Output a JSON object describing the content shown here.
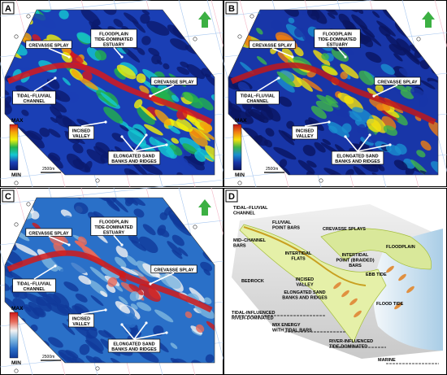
{
  "panels": [
    {
      "letter": "A",
      "colormap": [
        "#d7191c",
        "#f5a30a",
        "#f2f20a",
        "#22b24c",
        "#14c8d2",
        "#1a3fb5",
        "#0b1a6e"
      ],
      "color_max": "MAX",
      "color_min": "MIN",
      "scale_bar": "2500m",
      "labels": [
        {
          "lines": [
            "CREVASSE SPLAY"
          ]
        },
        {
          "lines": [
            "FLOODPLAIN",
            "TIDE-DOMINATED",
            "ESTUARY"
          ]
        },
        {
          "lines": [
            "CREVASSE SPLAY"
          ]
        },
        {
          "lines": [
            "TIDAL–FLUVIAL",
            "CHANNEL"
          ]
        },
        {
          "lines": [
            "INCISED",
            "VALLEY"
          ]
        },
        {
          "lines": [
            "ELONGATED SAND",
            "BANKS AND RIDGES"
          ]
        }
      ]
    },
    {
      "letter": "B",
      "colormap": [
        "#c0171b",
        "#f07e12",
        "#f5e20c",
        "#3fb54a",
        "#1a8fd0",
        "#1836a8",
        "#0a1560"
      ],
      "color_max": "MAX",
      "color_min": "MIN",
      "scale_bar": "2500m",
      "labels": [
        {
          "lines": [
            "CREVASSE SPLAY"
          ]
        },
        {
          "lines": [
            "FLOODPLAIN",
            "TIDE-DOMINATED",
            "ESTUARY"
          ]
        },
        {
          "lines": [
            "CREVASSE SPLAY"
          ]
        },
        {
          "lines": [
            "TIDAL–FLUVIAL",
            "CHANNEL"
          ]
        },
        {
          "lines": [
            "INCISED",
            "VALLEY"
          ]
        },
        {
          "lines": [
            "ELONGATED SAND",
            "BANKS AND RIDGES"
          ]
        }
      ]
    },
    {
      "letter": "C",
      "colormap": [
        "#d01a1a",
        "#e86a5a",
        "#f3f3f3",
        "#7fb8e0",
        "#2a70c8",
        "#103a9a"
      ],
      "color_max": "MAX",
      "color_min": "MIN",
      "scale_bar": "2500m",
      "labels": [
        {
          "lines": [
            "CREVASSE SPLAY"
          ]
        },
        {
          "lines": [
            "FLOODPLAIN",
            "TIDE-DOMINATED",
            "ESTUARY"
          ]
        },
        {
          "lines": [
            "CREVASSE SPLAY"
          ]
        },
        {
          "lines": [
            "TIDAL–FLUVIAL",
            "CHANNEL"
          ]
        },
        {
          "lines": [
            "INCISED",
            "VALLEY"
          ]
        },
        {
          "lines": [
            "ELONGATED SAND",
            "BANKS AND RIDGES"
          ]
        }
      ]
    }
  ],
  "diagram": {
    "letter": "D",
    "labels": [
      {
        "lines": [
          "TIDAL–FLUVIAL",
          "CHANNEL"
        ]
      },
      {
        "lines": [
          "FLUVIAL",
          "POINT BARS"
        ]
      },
      {
        "lines": [
          "MID–CHANNEL",
          "BARS"
        ]
      },
      {
        "lines": [
          "CREVASSE SPLAYS"
        ]
      },
      {
        "lines": [
          "FLOODPLAIN"
        ]
      },
      {
        "lines": [
          "INTERTIDAL",
          "FLATS"
        ]
      },
      {
        "lines": [
          "INTERTIDAL",
          "POINT (BRAIDED)",
          "BARS"
        ]
      },
      {
        "lines": [
          "BEDROCK"
        ]
      },
      {
        "lines": [
          "INCISED",
          "VALLEY"
        ]
      },
      {
        "lines": [
          "ELONGATED SAND",
          "BANKS AND RIDGES"
        ]
      },
      {
        "lines": [
          "EBB TIDE"
        ]
      },
      {
        "lines": [
          "FLOOD TIDE"
        ]
      },
      {
        "lines": [
          "TIDAL-INFLUENCED",
          "RIVER-DOMINATED"
        ]
      },
      {
        "lines": [
          "MIX ENERGY",
          "WITH TIDAL BARS"
        ]
      },
      {
        "lines": [
          "RIVER-INFLUENCED",
          "TIDE-DOMINATED"
        ]
      },
      {
        "lines": [
          "MARINE"
        ]
      }
    ]
  }
}
